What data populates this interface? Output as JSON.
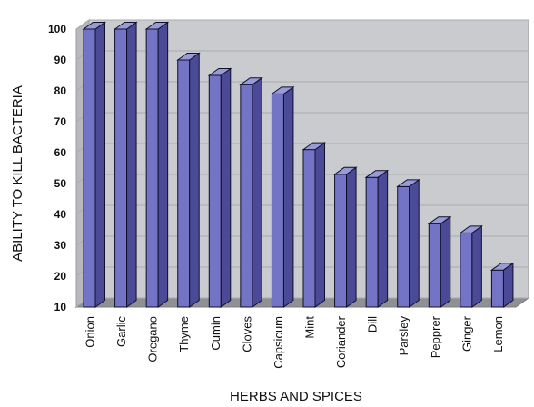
{
  "chart_data": {
    "type": "bar",
    "title": "",
    "xlabel": "HERBS AND SPICES",
    "ylabel": "ABILITY TO KILL BACTERIA",
    "ylim": [
      10,
      100
    ],
    "yticks": [
      10,
      20,
      30,
      40,
      50,
      60,
      70,
      80,
      90,
      100
    ],
    "grid": true,
    "legend": "none",
    "style": "3d-column",
    "colors": {
      "bar_front": "#7474c6",
      "bar_side": "#4a4a96",
      "bar_top": "#9a9ad8",
      "bar_outline": "#10102a",
      "wall": "#c9cbce",
      "floor": "#8e9094",
      "gridline": "#a9abae"
    },
    "categories": [
      "Onion",
      "Garlic",
      "Oregano",
      "Thyme",
      "Cumin",
      "Cloves",
      "Capsicum",
      "Mint",
      "Coriander",
      "Dill",
      "Parsley",
      "Pepprer",
      "Ginger",
      "Lemon"
    ],
    "values": [
      100,
      100,
      100,
      90,
      85,
      82,
      79,
      61,
      53,
      52,
      49,
      37,
      34,
      22
    ]
  }
}
